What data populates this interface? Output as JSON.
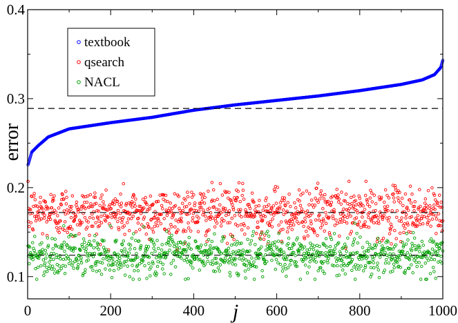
{
  "chart_data": {
    "type": "scatter",
    "xlabel": "j",
    "ylabel": "error",
    "xlim": [
      0,
      1000
    ],
    "ylim": [
      0.075,
      0.4
    ],
    "xticks": [
      0,
      200,
      400,
      600,
      800,
      1000
    ],
    "yticks": [
      0.1,
      0.2,
      0.3,
      0.4
    ],
    "x_tick_labels": [
      "0",
      "200",
      "400",
      "600",
      "800",
      "1000"
    ],
    "y_tick_labels": [
      "0.1",
      "0.2",
      "0.3",
      "0.4"
    ],
    "grid": false,
    "legend_position": "top-left",
    "n_points_per_series": 1000,
    "series": [
      {
        "name": "textbook",
        "color": "#0000ff",
        "shape": "sorted-increasing",
        "curve": [
          [
            0,
            0.224
          ],
          [
            10,
            0.24
          ],
          [
            25,
            0.247
          ],
          [
            50,
            0.257
          ],
          [
            100,
            0.266
          ],
          [
            200,
            0.273
          ],
          [
            300,
            0.279
          ],
          [
            400,
            0.287
          ],
          [
            500,
            0.293
          ],
          [
            600,
            0.298
          ],
          [
            700,
            0.303
          ],
          [
            800,
            0.309
          ],
          [
            900,
            0.316
          ],
          [
            950,
            0.321
          ],
          [
            980,
            0.327
          ],
          [
            995,
            0.335
          ],
          [
            1000,
            0.343
          ]
        ],
        "mean_line": 0.289
      },
      {
        "name": "qsearch",
        "color": "#ff0000",
        "shape": "random-scatter",
        "mean": 0.172,
        "spread": 0.014,
        "range": [
          0.13,
          0.207
        ],
        "mean_line": 0.172
      },
      {
        "name": "NACL",
        "color": "#00a000",
        "shape": "random-scatter",
        "mean": 0.124,
        "spread": 0.011,
        "range": [
          0.097,
          0.16
        ],
        "mean_line": 0.124
      }
    ]
  }
}
